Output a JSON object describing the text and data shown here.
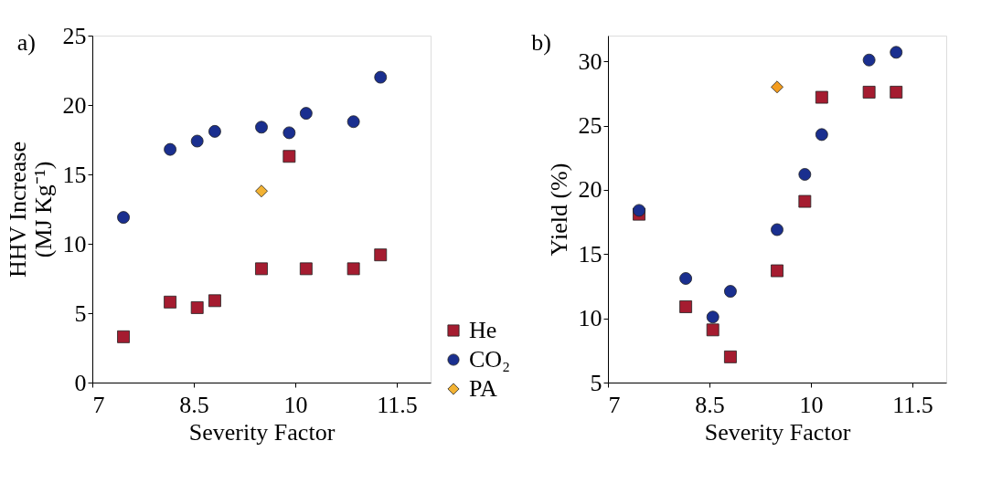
{
  "chart_data": [
    {
      "type": "scatter",
      "xlabel": "Severity Factor",
      "ylabel": "HHV Increase\n(MJ Kg⁻¹)",
      "annotations": [
        "a)"
      ],
      "x": [
        7.46,
        8.15,
        8.55,
        8.81,
        9.5,
        9.91,
        10.16,
        10.86,
        11.26
      ],
      "series": [
        {
          "name": "He",
          "color": "#a51c30",
          "marker": "square",
          "values": [
            3.3,
            5.8,
            5.4,
            5.9,
            8.2,
            16.3,
            8.2,
            8.2,
            9.2
          ]
        },
        {
          "name": "CO₂",
          "color": "#1a2f8f",
          "marker": "circle",
          "values": [
            11.9,
            16.8,
            17.4,
            18.1,
            18.4,
            18.0,
            19.4,
            18.8,
            22.0
          ]
        },
        {
          "name": "PA",
          "color": "#f2b233",
          "marker": "diamond",
          "x": [
            9.5
          ],
          "values": [
            13.8
          ]
        }
      ],
      "xlim": [
        7,
        12
      ],
      "ylim": [
        0,
        25
      ],
      "xticks": [
        7,
        8.5,
        10,
        11.5
      ],
      "yticks": [
        0,
        5,
        10,
        15,
        20,
        25
      ],
      "grid": false,
      "legend": "bottom right"
    },
    {
      "type": "scatter",
      "xlabel": "Severity Factor",
      "ylabel": "Yield (%)",
      "annotations": [
        "b)"
      ],
      "x": [
        7.46,
        8.15,
        8.55,
        8.81,
        9.5,
        9.91,
        10.16,
        10.86,
        11.26
      ],
      "series": [
        {
          "color": "#a51c30",
          "marker": "square",
          "values": [
            18.1,
            10.9,
            9.1,
            7.0,
            13.7,
            19.1,
            27.2,
            27.6,
            27.6
          ]
        },
        {
          "color": "#1a2f8f",
          "marker": "circle",
          "values": [
            18.4,
            13.1,
            10.1,
            12.1,
            16.9,
            21.2,
            24.3,
            30.1,
            30.7
          ]
        },
        {
          "color": "#f39c1e",
          "marker": "diamond",
          "x": [
            9.5
          ],
          "values": [
            28.0
          ]
        }
      ],
      "xlim": [
        7,
        12
      ],
      "ylim": [
        5,
        32
      ],
      "xticks": [
        7,
        8.5,
        10,
        11.5
      ],
      "yticks": [
        5,
        10,
        15,
        20,
        25,
        30
      ],
      "grid": false,
      "legend": false
    }
  ]
}
